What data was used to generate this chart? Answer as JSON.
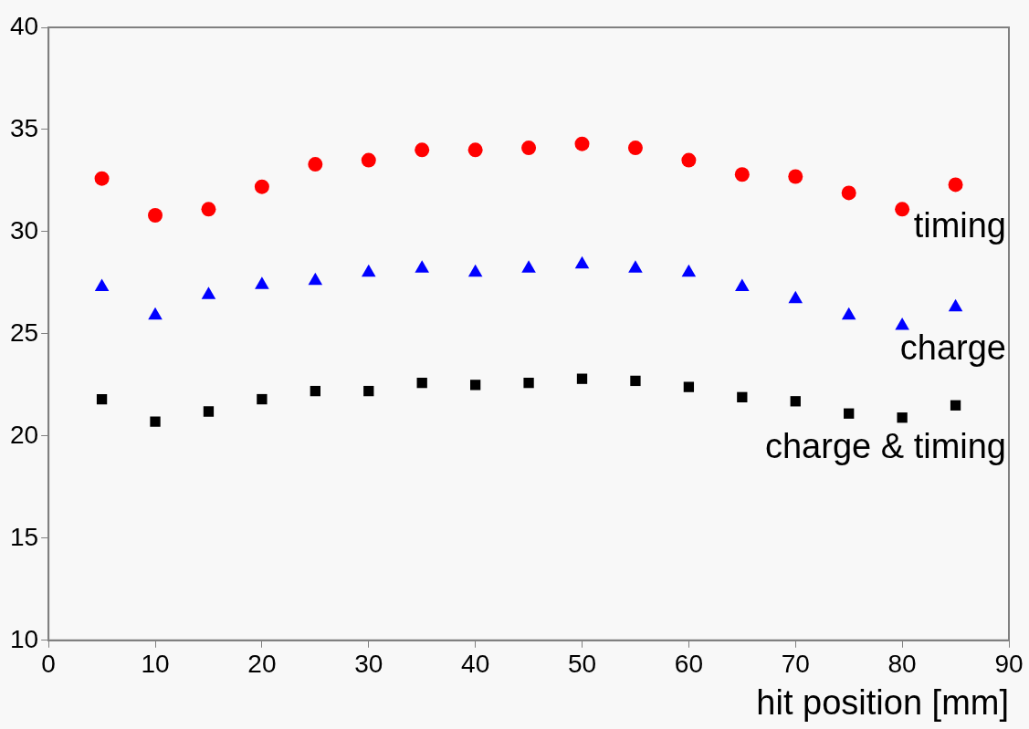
{
  "chart_data": {
    "type": "scatter",
    "xlabel": "hit position [mm]",
    "x": [
      5,
      10,
      15,
      20,
      25,
      30,
      35,
      40,
      45,
      50,
      55,
      60,
      65,
      70,
      75,
      80,
      85
    ],
    "series": [
      {
        "name": "timing",
        "color": "#ff0000",
        "marker": "circle",
        "values": [
          32.6,
          30.8,
          31.1,
          32.2,
          33.3,
          33.5,
          34.0,
          34.0,
          34.1,
          34.3,
          34.1,
          33.5,
          32.8,
          32.7,
          31.9,
          31.1,
          32.3
        ]
      },
      {
        "name": "charge",
        "color": "#0000ff",
        "marker": "triangle",
        "values": [
          27.3,
          25.9,
          26.9,
          27.4,
          27.6,
          28.0,
          28.2,
          28.0,
          28.2,
          28.4,
          28.2,
          28.0,
          27.3,
          26.7,
          25.9,
          25.4,
          26.3
        ]
      },
      {
        "name": "charge & timing",
        "color": "#000000",
        "marker": "square",
        "values": [
          21.8,
          20.7,
          21.2,
          21.8,
          22.2,
          22.2,
          22.6,
          22.5,
          22.6,
          22.8,
          22.7,
          22.4,
          21.9,
          21.7,
          21.1,
          20.9,
          21.5
        ]
      }
    ],
    "xlim": [
      0,
      90
    ],
    "xticks": [
      0,
      10,
      20,
      30,
      40,
      50,
      60,
      70,
      80,
      90
    ],
    "ylim": [
      10,
      40
    ],
    "yticks": [
      10,
      15,
      20,
      25,
      30,
      35,
      40
    ],
    "grid": false,
    "legend": false
  }
}
